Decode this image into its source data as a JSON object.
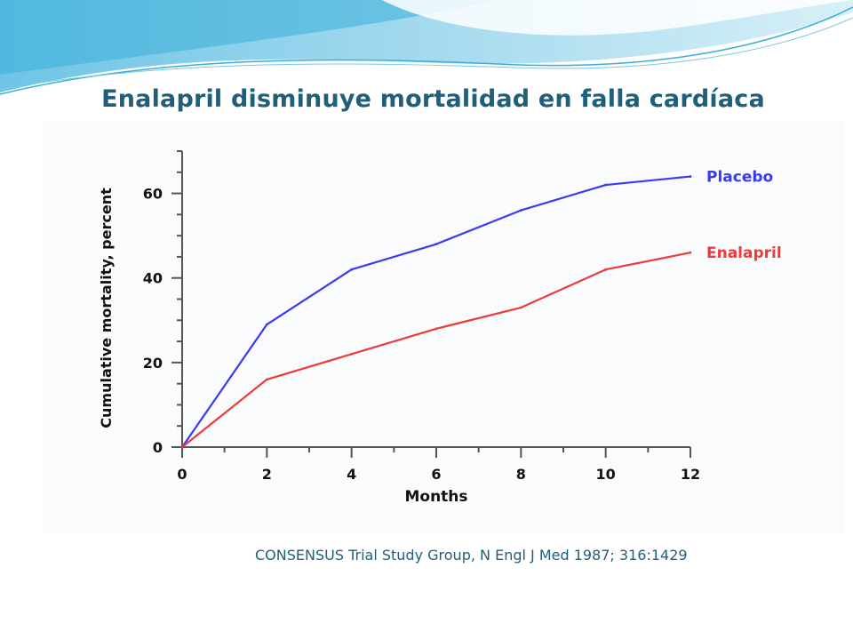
{
  "slide": {
    "title": "Enalapril disminuye mortalidad en falla cardíaca",
    "citation": "CONSENSUS Trial Study Group, N Engl J Med 1987; 316:1429"
  },
  "colors": {
    "title": "#1f5f7a",
    "placebo": "#3a3af0",
    "enalapril": "#ee3a3a",
    "axis": "#555555",
    "wave": "#3aaed8"
  },
  "chart_data": {
    "type": "line",
    "title": "",
    "xlabel": "Months",
    "ylabel": "Cumulative mortality, percent",
    "xlim": [
      0,
      12
    ],
    "ylim": [
      0,
      70
    ],
    "x_ticks": [
      0,
      2,
      4,
      6,
      8,
      10,
      12
    ],
    "y_ticks": [
      0,
      20,
      40,
      60
    ],
    "grid": false,
    "legend": "right (labels at line ends)",
    "series": [
      {
        "name": "Placebo",
        "color": "#3a3af0",
        "x": [
          0,
          2,
          4,
          6,
          8,
          10,
          12
        ],
        "y": [
          0,
          29,
          42,
          48,
          56,
          62,
          64
        ]
      },
      {
        "name": "Enalapril",
        "color": "#ee3a3a",
        "x": [
          0,
          2,
          4,
          6,
          8,
          10,
          12
        ],
        "y": [
          0,
          16,
          22,
          28,
          33,
          42,
          46
        ]
      }
    ]
  }
}
